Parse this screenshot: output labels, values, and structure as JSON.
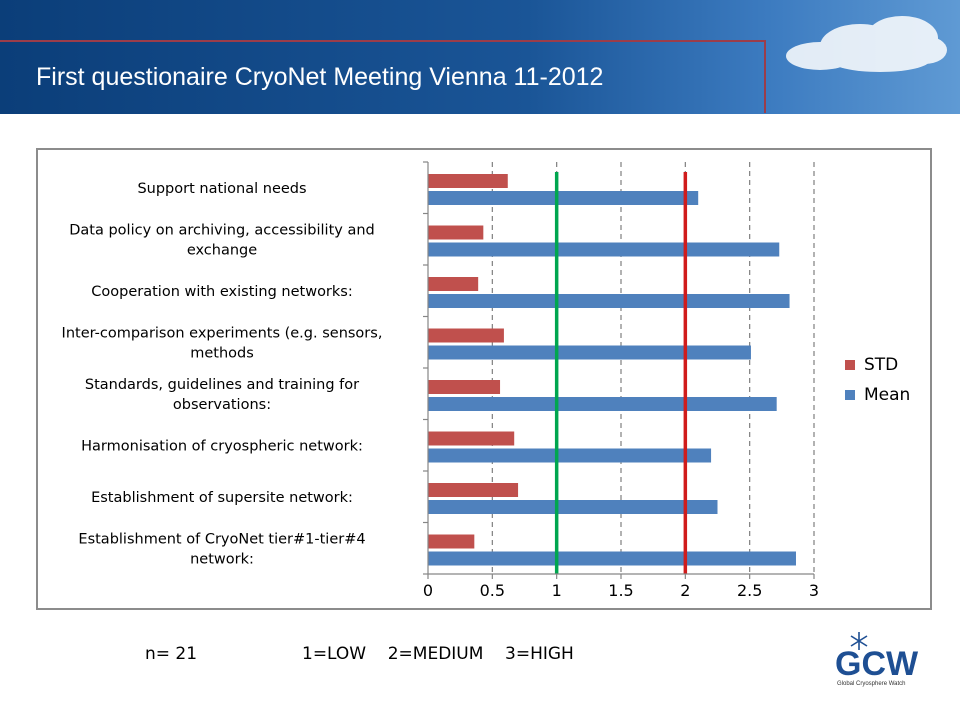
{
  "slide": {
    "title": "First questionaire CryoNet Meeting Vienna 11-2012",
    "n_label": "n= 21",
    "scale_label": "1=LOW    2=MEDIUM    3=HIGH"
  },
  "logo": {
    "text": "GCW",
    "subtitle": "Global Cryosphere Watch"
  },
  "colors": {
    "std": "#c0504d",
    "mean": "#4f81bd",
    "low_line": "#00a64f",
    "medium_line": "#d01c1c"
  },
  "chart_data": {
    "type": "bar",
    "orientation": "horizontal",
    "categories": [
      "Support national needs",
      "Data policy on archiving, accessibility and exchange",
      "Cooperation with existing networks:",
      "Inter-comparison experiments (e.g. sensors, methods",
      "Standards, guidelines and training for observations:",
      "Harmonisation of cryospheric network:",
      "Establishment of supersite network:",
      "Establishment of CryoNet tier#1-tier#4 network:"
    ],
    "category_lines": [
      [
        "Support national needs"
      ],
      [
        "Data policy on archiving, accessibility and",
        "exchange"
      ],
      [
        "Cooperation with existing networks:"
      ],
      [
        "Inter-comparison experiments (e.g. sensors,",
        "methods"
      ],
      [
        "Standards, guidelines and training for",
        "observations:"
      ],
      [
        "Harmonisation of cryospheric network:"
      ],
      [
        "Establishment of supersite network:"
      ],
      [
        "Establishment of CryoNet tier#1-tier#4",
        "network:"
      ]
    ],
    "series": [
      {
        "name": "STD",
        "values": [
          0.62,
          0.43,
          0.39,
          0.59,
          0.56,
          0.67,
          0.7,
          0.36
        ]
      },
      {
        "name": "Mean",
        "values": [
          2.1,
          2.73,
          2.81,
          2.51,
          2.71,
          2.2,
          2.25,
          2.86
        ]
      }
    ],
    "xlim": [
      0,
      3
    ],
    "xticks": [
      "0",
      "0.5",
      "1",
      "1.5",
      "2",
      "2.5",
      "3"
    ],
    "xtick_values": [
      0,
      0.5,
      1,
      1.5,
      2,
      2.5,
      3
    ],
    "reference_lines": [
      {
        "value": 1,
        "color": "#00a64f"
      },
      {
        "value": 2,
        "color": "#d01c1c"
      }
    ],
    "grid": "vertical dashed",
    "legend": "right",
    "title": "",
    "xlabel": "",
    "ylabel": ""
  }
}
